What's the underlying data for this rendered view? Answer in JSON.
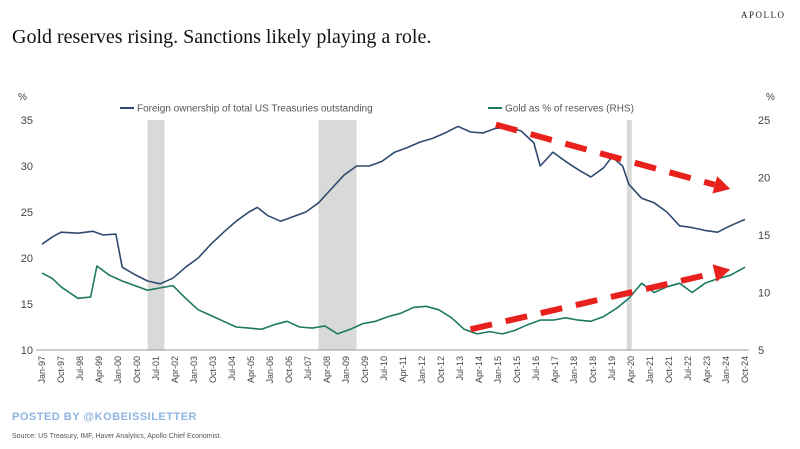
{
  "header": {
    "brand": "APOLLO",
    "title": "Gold reserves rising. Sanctions likely playing a role."
  },
  "footer": {
    "posted_by": "POSTED BY @KOBEISSILETTER",
    "source": "Source: US Treasury, IMF, Haver Analytics, Apollo Chief Economist."
  },
  "colors": {
    "foreign_line": "#2f4a6e",
    "gold_line": "#1d7a5e",
    "recession_shade": "#d9d9d9",
    "arrow": "#e8211c"
  },
  "chart_data": {
    "type": "line",
    "left_unit": "%",
    "right_unit": "%",
    "y_left_lim": [
      10,
      35
    ],
    "y_left_ticks": [
      10,
      15,
      20,
      25,
      30,
      35
    ],
    "y_right_lim": [
      5,
      25
    ],
    "y_right_ticks": [
      5,
      10,
      15,
      20,
      25
    ],
    "x_lim": [
      "1997-01",
      "2024-10"
    ],
    "x_ticks": [
      "Jan-97",
      "Oct-97",
      "Jul-98",
      "Apr-99",
      "Jan-00",
      "Oct-00",
      "Jul-01",
      "Apr-02",
      "Jan-03",
      "Oct-03",
      "Jul-04",
      "Apr-05",
      "Jan-06",
      "Oct-06",
      "Jul-07",
      "Apr-08",
      "Jan-09",
      "Oct-09",
      "Jul-10",
      "Apr-11",
      "Jan-12",
      "Oct-12",
      "Jul-13",
      "Apr-14",
      "Jan-15",
      "Oct-15",
      "Jul-16",
      "Apr-17",
      "Jan-18",
      "Oct-18",
      "Jul-19",
      "Apr-20",
      "Jan-21",
      "Oct-21",
      "Jul-22",
      "Apr-23",
      "Jan-24",
      "Oct-24"
    ],
    "recessions": [
      [
        "2001-03",
        "2001-11"
      ],
      [
        "2007-12",
        "2009-06"
      ],
      [
        "2020-02",
        "2020-04"
      ]
    ],
    "series": [
      {
        "name": "Foreign ownership of total US Treasuries outstanding",
        "axis": "left",
        "points": [
          [
            "1997-01",
            21.5
          ],
          [
            "1997-06",
            22.3
          ],
          [
            "1997-10",
            22.8
          ],
          [
            "1998-06",
            22.7
          ],
          [
            "1999-01",
            22.9
          ],
          [
            "1999-06",
            22.5
          ],
          [
            "1999-12",
            22.6
          ],
          [
            "2000-03",
            19.0
          ],
          [
            "2000-09",
            18.2
          ],
          [
            "2001-03",
            17.5
          ],
          [
            "2001-09",
            17.2
          ],
          [
            "2002-03",
            17.8
          ],
          [
            "2002-09",
            19.0
          ],
          [
            "2003-03",
            20.0
          ],
          [
            "2003-09",
            21.5
          ],
          [
            "2004-03",
            22.8
          ],
          [
            "2004-09",
            24.0
          ],
          [
            "2005-03",
            25.0
          ],
          [
            "2005-07",
            25.5
          ],
          [
            "2005-12",
            24.6
          ],
          [
            "2006-06",
            24.0
          ],
          [
            "2006-12",
            24.5
          ],
          [
            "2007-06",
            25.0
          ],
          [
            "2007-12",
            26.0
          ],
          [
            "2008-06",
            27.5
          ],
          [
            "2008-12",
            29.0
          ],
          [
            "2009-06",
            30.0
          ],
          [
            "2009-12",
            30.0
          ],
          [
            "2010-06",
            30.5
          ],
          [
            "2010-12",
            31.5
          ],
          [
            "2011-06",
            32.0
          ],
          [
            "2011-12",
            32.6
          ],
          [
            "2012-06",
            33.0
          ],
          [
            "2012-12",
            33.6
          ],
          [
            "2013-06",
            34.3
          ],
          [
            "2013-12",
            33.7
          ],
          [
            "2014-06",
            33.6
          ],
          [
            "2014-12",
            34.1
          ],
          [
            "2015-06",
            34.2
          ],
          [
            "2015-12",
            33.8
          ],
          [
            "2016-06",
            32.5
          ],
          [
            "2016-09",
            30.0
          ],
          [
            "2017-03",
            31.5
          ],
          [
            "2017-09",
            30.5
          ],
          [
            "2018-03",
            29.6
          ],
          [
            "2018-09",
            28.8
          ],
          [
            "2019-03",
            29.8
          ],
          [
            "2019-07",
            31.0
          ],
          [
            "2019-12",
            30.0
          ],
          [
            "2020-03",
            28.0
          ],
          [
            "2020-09",
            26.5
          ],
          [
            "2021-03",
            26.0
          ],
          [
            "2021-09",
            25.0
          ],
          [
            "2022-03",
            23.5
          ],
          [
            "2022-09",
            23.3
          ],
          [
            "2023-03",
            23.0
          ],
          [
            "2023-09",
            22.8
          ],
          [
            "2024-03",
            23.5
          ],
          [
            "2024-10",
            24.2
          ]
        ]
      },
      {
        "name": "Gold as % of  reserves (RHS)",
        "axis": "right",
        "points": [
          [
            "1997-01",
            11.7
          ],
          [
            "1997-06",
            11.2
          ],
          [
            "1997-10",
            10.5
          ],
          [
            "1998-06",
            9.5
          ],
          [
            "1998-12",
            9.6
          ],
          [
            "1999-03",
            12.3
          ],
          [
            "1999-09",
            11.5
          ],
          [
            "2000-03",
            11.0
          ],
          [
            "2000-09",
            10.6
          ],
          [
            "2001-03",
            10.2
          ],
          [
            "2001-09",
            10.4
          ],
          [
            "2002-03",
            10.6
          ],
          [
            "2002-09",
            9.5
          ],
          [
            "2003-03",
            8.5
          ],
          [
            "2003-09",
            8.0
          ],
          [
            "2004-03",
            7.5
          ],
          [
            "2004-09",
            7.0
          ],
          [
            "2005-03",
            6.9
          ],
          [
            "2005-09",
            6.8
          ],
          [
            "2006-03",
            7.2
          ],
          [
            "2006-09",
            7.5
          ],
          [
            "2007-03",
            7.0
          ],
          [
            "2007-09",
            6.9
          ],
          [
            "2008-03",
            7.1
          ],
          [
            "2008-09",
            6.4
          ],
          [
            "2009-03",
            6.8
          ],
          [
            "2009-09",
            7.3
          ],
          [
            "2010-03",
            7.5
          ],
          [
            "2010-09",
            7.9
          ],
          [
            "2011-03",
            8.2
          ],
          [
            "2011-09",
            8.7
          ],
          [
            "2012-03",
            8.8
          ],
          [
            "2012-09",
            8.5
          ],
          [
            "2013-03",
            7.8
          ],
          [
            "2013-09",
            6.8
          ],
          [
            "2014-03",
            6.4
          ],
          [
            "2014-09",
            6.6
          ],
          [
            "2015-03",
            6.4
          ],
          [
            "2015-09",
            6.7
          ],
          [
            "2016-03",
            7.2
          ],
          [
            "2016-09",
            7.6
          ],
          [
            "2017-03",
            7.6
          ],
          [
            "2017-09",
            7.8
          ],
          [
            "2018-03",
            7.6
          ],
          [
            "2018-09",
            7.5
          ],
          [
            "2019-03",
            7.9
          ],
          [
            "2019-09",
            8.6
          ],
          [
            "2020-03",
            9.5
          ],
          [
            "2020-09",
            10.8
          ],
          [
            "2021-03",
            10.0
          ],
          [
            "2021-09",
            10.5
          ],
          [
            "2022-03",
            10.8
          ],
          [
            "2022-09",
            10.0
          ],
          [
            "2023-03",
            10.8
          ],
          [
            "2023-09",
            11.2
          ],
          [
            "2024-03",
            11.5
          ],
          [
            "2024-10",
            12.2
          ]
        ]
      }
    ],
    "annotations": [
      {
        "type": "dashed-arrow",
        "from": [
          "2014-12",
          34.5
        ],
        "to": [
          "2024-03",
          27.5
        ],
        "axis": "left"
      },
      {
        "type": "dashed-arrow",
        "from": [
          "2013-12",
          6.8
        ],
        "to": [
          "2024-03",
          12.0
        ],
        "axis": "right"
      }
    ]
  }
}
